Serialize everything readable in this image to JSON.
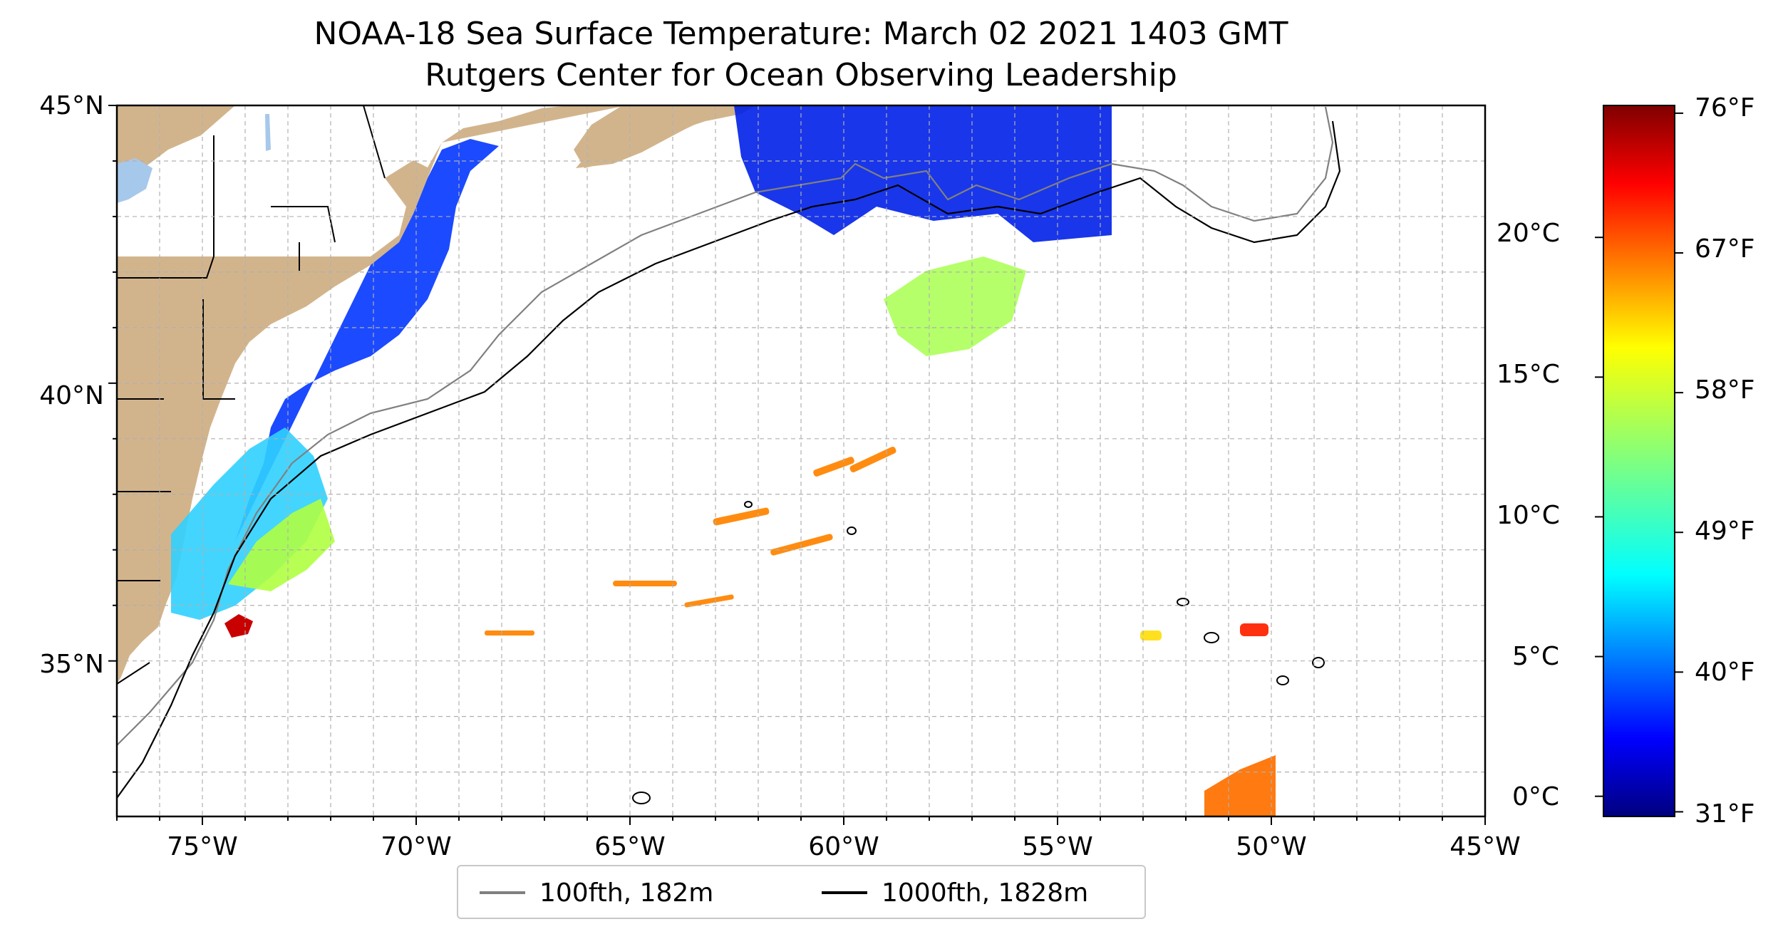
{
  "map": {
    "title": "NOAA-18 Sea Surface Temperature: March 02 2021 1403 GMT",
    "subtitle": "Rutgers Center for Ocean Observing Leadership",
    "extent": {
      "lon_min": -77,
      "lon_max": -45,
      "lat_min": 32.2,
      "lat_max": 45
    },
    "lat_ticks": [
      {
        "value": 45,
        "label": "45°N"
      },
      {
        "value": 40,
        "label": "40°N"
      },
      {
        "value": 35,
        "label": "35°N"
      }
    ],
    "lon_ticks": [
      {
        "value": -75,
        "label": "75°W"
      },
      {
        "value": -70,
        "label": "70°W"
      },
      {
        "value": -65,
        "label": "65°W"
      },
      {
        "value": -60,
        "label": "60°W"
      },
      {
        "value": -55,
        "label": "55°W"
      },
      {
        "value": -50,
        "label": "50°W"
      },
      {
        "value": -45,
        "label": "45°W"
      }
    ],
    "grid": true,
    "land_color": "#d2b48c",
    "lake_color": "#a6c8ea",
    "colorbar": {
      "colormap": "jet",
      "celsius_ticks": [
        "0°C",
        "5°C",
        "10°C",
        "15°C",
        "20°C"
      ],
      "fahrenheit_ticks": [
        "31°F",
        "40°F",
        "49°F",
        "58°F",
        "67°F",
        "76°F"
      ]
    },
    "legend": [
      {
        "label": "100fth, 182m",
        "color": "#808080"
      },
      {
        "label": "1000fth, 1828m",
        "color": "#000000"
      }
    ]
  }
}
